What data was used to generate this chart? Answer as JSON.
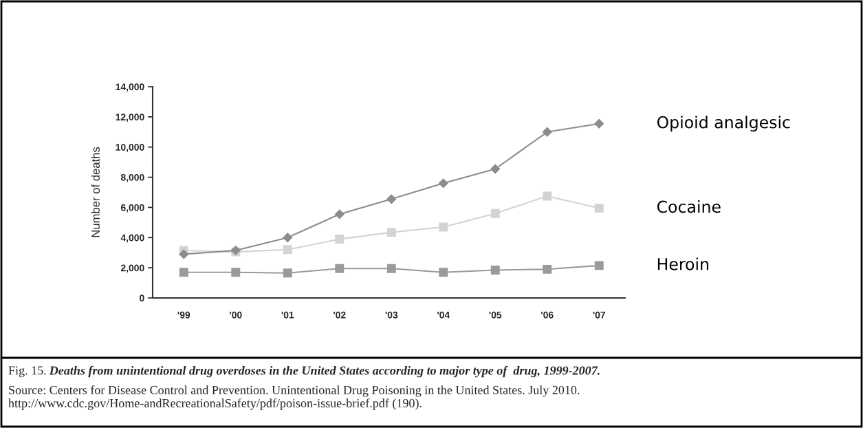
{
  "chart_data": {
    "type": "line",
    "categories": [
      "'99",
      "'00",
      "'01",
      "'02",
      "'03",
      "'04",
      "'05",
      "'06",
      "'07"
    ],
    "ylabel": "Number of deaths",
    "ylim": [
      0,
      14000
    ],
    "yticks": [
      {
        "value": 0,
        "label": "0"
      },
      {
        "value": 2000,
        "label": "2,000"
      },
      {
        "value": 4000,
        "label": "4,000"
      },
      {
        "value": 6000,
        "label": "6,000"
      },
      {
        "value": 8000,
        "label": "8,000"
      },
      {
        "value": 10000,
        "label": "10,000"
      },
      {
        "value": 12000,
        "label": "12,000"
      },
      {
        "value": 14000,
        "label": "14,000"
      }
    ],
    "series": [
      {
        "name": "Opioid analgesic",
        "color": "#8c8c8c",
        "marker": "diamond",
        "values": [
          2900,
          3150,
          4000,
          5550,
          6550,
          7600,
          8550,
          11000,
          11550
        ]
      },
      {
        "name": "Cocaine",
        "color": "#d3d3d3",
        "marker": "square",
        "values": [
          3150,
          3050,
          3200,
          3900,
          4350,
          4700,
          5600,
          6750,
          5950
        ]
      },
      {
        "name": "Heroin",
        "color": "#9a9a9a",
        "marker": "square",
        "values": [
          1700,
          1700,
          1650,
          1950,
          1950,
          1700,
          1850,
          1900,
          2150
        ]
      }
    ],
    "legend": false,
    "grid": false,
    "annotations": [
      "Fig. 15.",
      "Deaths from unintentional drug overdoses in the United States according to major type of  drug, 1999-2007.",
      "Source: Centers for Disease Control and Prevention. Unintentional Drug Poisoning in the United States. July 2010.  http://www.cdc.gov/Home-andRecreationalSafety/pdf/poison-issue-brief.pdf (190)."
    ]
  }
}
